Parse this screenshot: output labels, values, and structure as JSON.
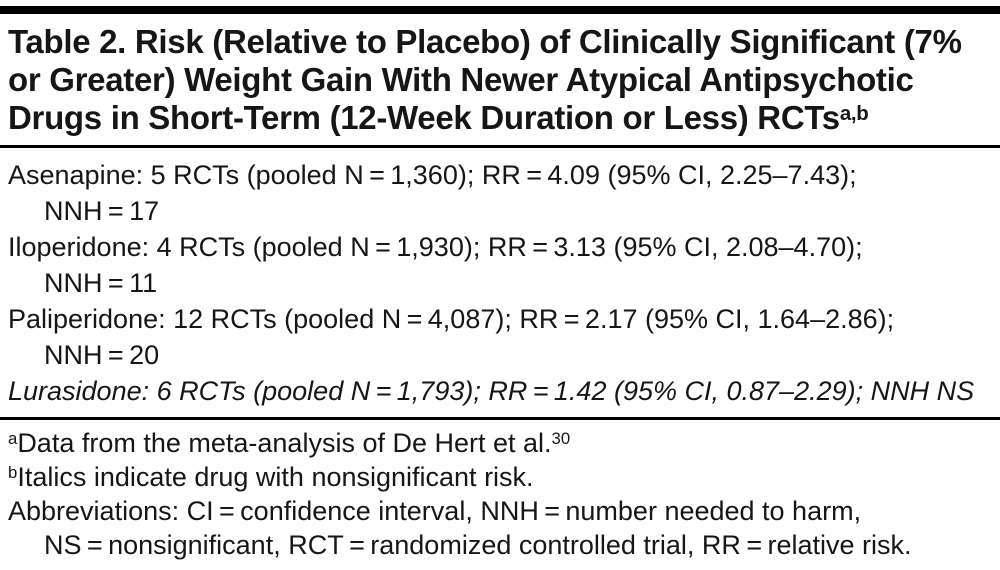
{
  "colors": {
    "background": "#ffffff",
    "text": "#161616",
    "rule": "#000000"
  },
  "table": {
    "title": {
      "line1": "Table 2. Risk (Relative to Placebo) of Clinically Significant (7%",
      "line2": "or Greater) Weight Gain With Newer Atypical Antipsychotic",
      "line3": "Drugs in Short-Term (12-Week Duration or Less) RCTs",
      "superscript": "a,b"
    },
    "rows": [
      {
        "line1": "Asenapine: 5 RCTs (pooled N = 1,360); RR = 4.09 (95% CI, 2.25–7.43);",
        "line2": "NNH = 17",
        "italic": false
      },
      {
        "line1": "Iloperidone: 4 RCTs (pooled N = 1,930); RR = 3.13 (95% CI, 2.08–4.70);",
        "line2": "NNH = 11",
        "italic": false
      },
      {
        "line1": "Paliperidone: 12 RCTs (pooled N = 4,087); RR = 2.17 (95% CI, 1.64–2.86);",
        "line2": "NNH = 20",
        "italic": false
      },
      {
        "line1": "Lurasidone: 6 RCTs (pooled N = 1,793); RR = 1.42 (95% CI, 0.87–2.29); NNH NS",
        "italic": true
      }
    ],
    "footnotes": {
      "a": {
        "marker": "a",
        "text": "Data from the meta-analysis of De Hert et al.",
        "reference": "30"
      },
      "b": {
        "marker": "b",
        "text": "Italics indicate drug with nonsignificant risk."
      },
      "abbreviations": {
        "line1": "Abbreviations: CI = confidence interval, NNH = number needed to harm,",
        "line2": "NS = nonsignificant, RCT = randomized controlled trial, RR = relative risk."
      }
    }
  }
}
